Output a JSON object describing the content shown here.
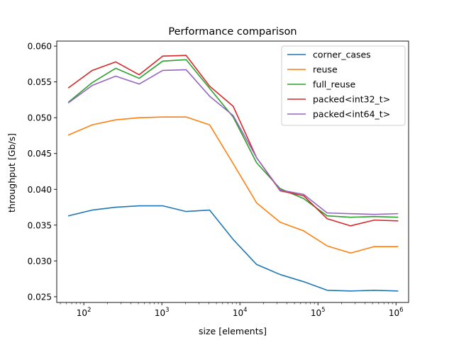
{
  "chart_data": {
    "type": "line",
    "title": "Performance comparison",
    "xlabel": "size [elements]",
    "ylabel": "throughput [Gb/s]",
    "xscale": "log",
    "xlim": [
      45,
      1450000
    ],
    "ylim": [
      0.0242,
      0.0607
    ],
    "grid": false,
    "legend_position": "top-right",
    "x": [
      64,
      128,
      256,
      512,
      1024,
      2048,
      4096,
      8192,
      16384,
      32768,
      65536,
      131072,
      262144,
      524288,
      1048576
    ],
    "x_tick_labels": [
      {
        "base": "10",
        "exp": "2",
        "value": 100
      },
      {
        "base": "10",
        "exp": "3",
        "value": 1000
      },
      {
        "base": "10",
        "exp": "4",
        "value": 10000
      },
      {
        "base": "10",
        "exp": "5",
        "value": 100000
      },
      {
        "base": "10",
        "exp": "6",
        "value": 1000000
      }
    ],
    "y_ticks": [
      0.025,
      0.03,
      0.035,
      0.04,
      0.045,
      0.05,
      0.055,
      0.06
    ],
    "y_tick_labels": [
      "0.025",
      "0.030",
      "0.035",
      "0.040",
      "0.045",
      "0.050",
      "0.055",
      "0.060"
    ],
    "series": [
      {
        "name": "corner_cases",
        "color": "#1f77b4",
        "values": [
          0.0363,
          0.0371,
          0.0375,
          0.0377,
          0.0377,
          0.0369,
          0.0371,
          0.033,
          0.0295,
          0.0281,
          0.0271,
          0.0259,
          0.0258,
          0.0259,
          0.0258
        ]
      },
      {
        "name": "reuse",
        "color": "#ff7f0e",
        "values": [
          0.0476,
          0.049,
          0.0497,
          0.05,
          0.0501,
          0.0501,
          0.049,
          0.0436,
          0.0381,
          0.0354,
          0.0342,
          0.0321,
          0.0311,
          0.032,
          0.032
        ]
      },
      {
        "name": "full_reuse",
        "color": "#2ca02c",
        "values": [
          0.0522,
          0.0549,
          0.0569,
          0.0555,
          0.0579,
          0.0581,
          0.0541,
          0.0501,
          0.0437,
          0.0401,
          0.0387,
          0.0363,
          0.0361,
          0.0362,
          0.0361
        ]
      },
      {
        "name": "packed<int32_t>",
        "color": "#d62728",
        "values": [
          0.0542,
          0.0566,
          0.0578,
          0.056,
          0.0586,
          0.0587,
          0.0544,
          0.0516,
          0.0444,
          0.0398,
          0.0391,
          0.0359,
          0.0349,
          0.0357,
          0.0356
        ]
      },
      {
        "name": "packed<int64_t>",
        "color": "#9467bd",
        "values": [
          0.0521,
          0.0545,
          0.0558,
          0.0547,
          0.0566,
          0.0567,
          0.053,
          0.0503,
          0.0444,
          0.0399,
          0.0393,
          0.0367,
          0.0366,
          0.0365,
          0.0366
        ]
      }
    ]
  }
}
